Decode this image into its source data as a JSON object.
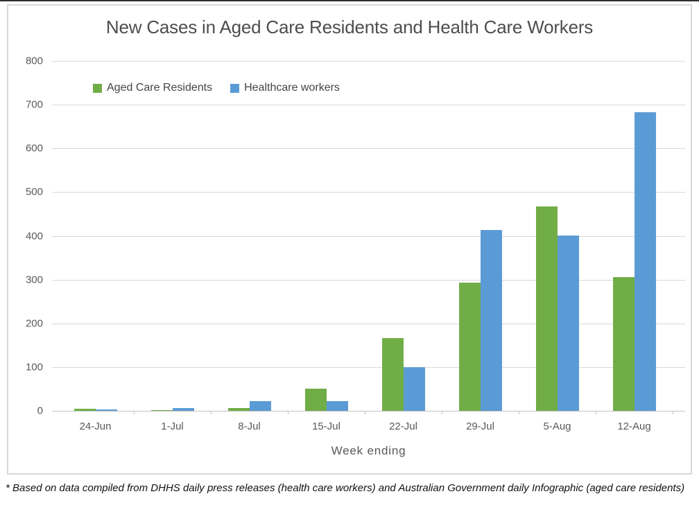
{
  "chart_data": {
    "type": "bar",
    "title": "New Cases in Aged Care Residents and Health Care Workers",
    "xlabel": "Week ending",
    "ylabel": "",
    "categories": [
      "24-Jun",
      "1-Jul",
      "8-Jul",
      "15-Jul",
      "22-Jul",
      "29-Jul",
      "5-Aug",
      "12-Aug"
    ],
    "series": [
      {
        "name": "Aged Care Residents",
        "color": "#70AD47",
        "values": [
          5,
          1,
          6,
          51,
          166,
          293,
          467,
          306
        ]
      },
      {
        "name": "Healthcare workers",
        "color": "#5B9BD5",
        "values": [
          3,
          6,
          22,
          22,
          100,
          413,
          400,
          682
        ]
      }
    ],
    "ylim": [
      0,
      800
    ],
    "yticks": [
      0,
      100,
      200,
      300,
      400,
      500,
      600,
      700,
      800
    ],
    "grid": "horizontal",
    "legend_position": "top-left-inside"
  },
  "footnote": "* Based on data compiled from DHHS daily press releases (health care workers) and Australian Government daily Infographic (aged care residents)",
  "colors": {
    "grid": "#d9d9d9",
    "axis_line": "#c3c3c3",
    "axis_text": "#595959",
    "title_text": "#4d4d4d",
    "frame_border": "#d8d8d8",
    "background": "#ffffff"
  }
}
